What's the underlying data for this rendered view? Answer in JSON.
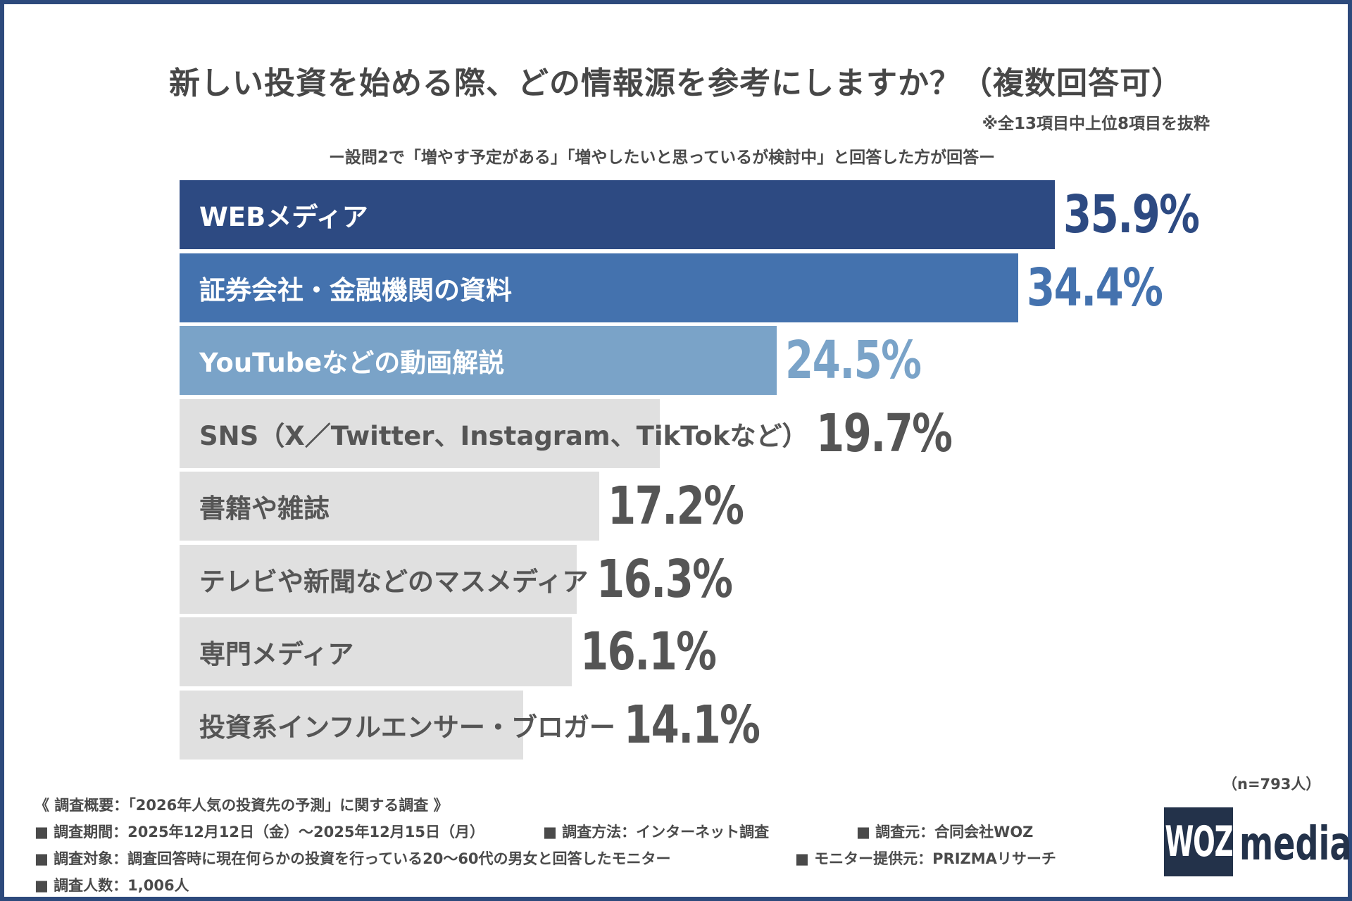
{
  "title": "新しい投資を始める際、どの情報源を参考にしますか？（複数回答可）",
  "note": "※全13項目中上位8項目を抜粋",
  "subtitle": "ー設問2で「増やす予定がある」「増やしたいと思っているが検討中」と回答した方が回答ー",
  "chart_data": {
    "type": "bar",
    "orientation": "horizontal",
    "title": "新しい投資を始める際、どの情報源を参考にしますか？（複数回答可）",
    "unit": "%",
    "categories": [
      "WEBメディア",
      "証券会社・金融機関の資料",
      "YouTubeなどの動画解説",
      "SNS（X／Twitter、Instagram、TikTokなど）",
      "書籍や雑誌",
      "テレビや新聞などのマスメディア",
      "専門メディア",
      "投資系インフルエンサー・ブロガー"
    ],
    "values": [
      35.9,
      34.4,
      24.5,
      19.7,
      17.2,
      16.3,
      16.1,
      14.1
    ],
    "data_labels": [
      "35.9%",
      "34.4%",
      "24.5%",
      "19.7%",
      "17.2%",
      "16.3%",
      "16.1%",
      "14.1%"
    ],
    "bar_colors": [
      "#2d4a82",
      "#4472ae",
      "#7aa3c8",
      "#e0e0e0",
      "#e0e0e0",
      "#e0e0e0",
      "#e0e0e0",
      "#e0e0e0"
    ],
    "label_colors": [
      "#ffffff",
      "#ffffff",
      "#ffffff",
      "#555555",
      "#555555",
      "#555555",
      "#555555",
      "#555555"
    ],
    "value_colors": [
      "#2d4a82",
      "#4472ae",
      "#7aa3c8",
      "#555555",
      "#555555",
      "#555555",
      "#555555",
      "#555555"
    ],
    "grid": false,
    "legend": "none"
  },
  "sample_size": "（n=793人）",
  "footer": {
    "overview": "《 調査概要：「2026年人気の投資先の予測」に関する調査 》",
    "period": "■ 調査期間：2025年12月12日（金）〜2025年12月15日（月）",
    "method": "■ 調査方法：インターネット調査",
    "source": "■ 調査元：合同会社WOZ",
    "target": "■ 調査対象：調査回答時に現在何らかの投資を行っている20〜60代の男女と回答したモニター",
    "provider": "■ モニター提供元：PRIZMAリサーチ",
    "count": "■ 調査人数：1,006人"
  },
  "logo": {
    "box": "WOZ",
    "text": "media"
  }
}
